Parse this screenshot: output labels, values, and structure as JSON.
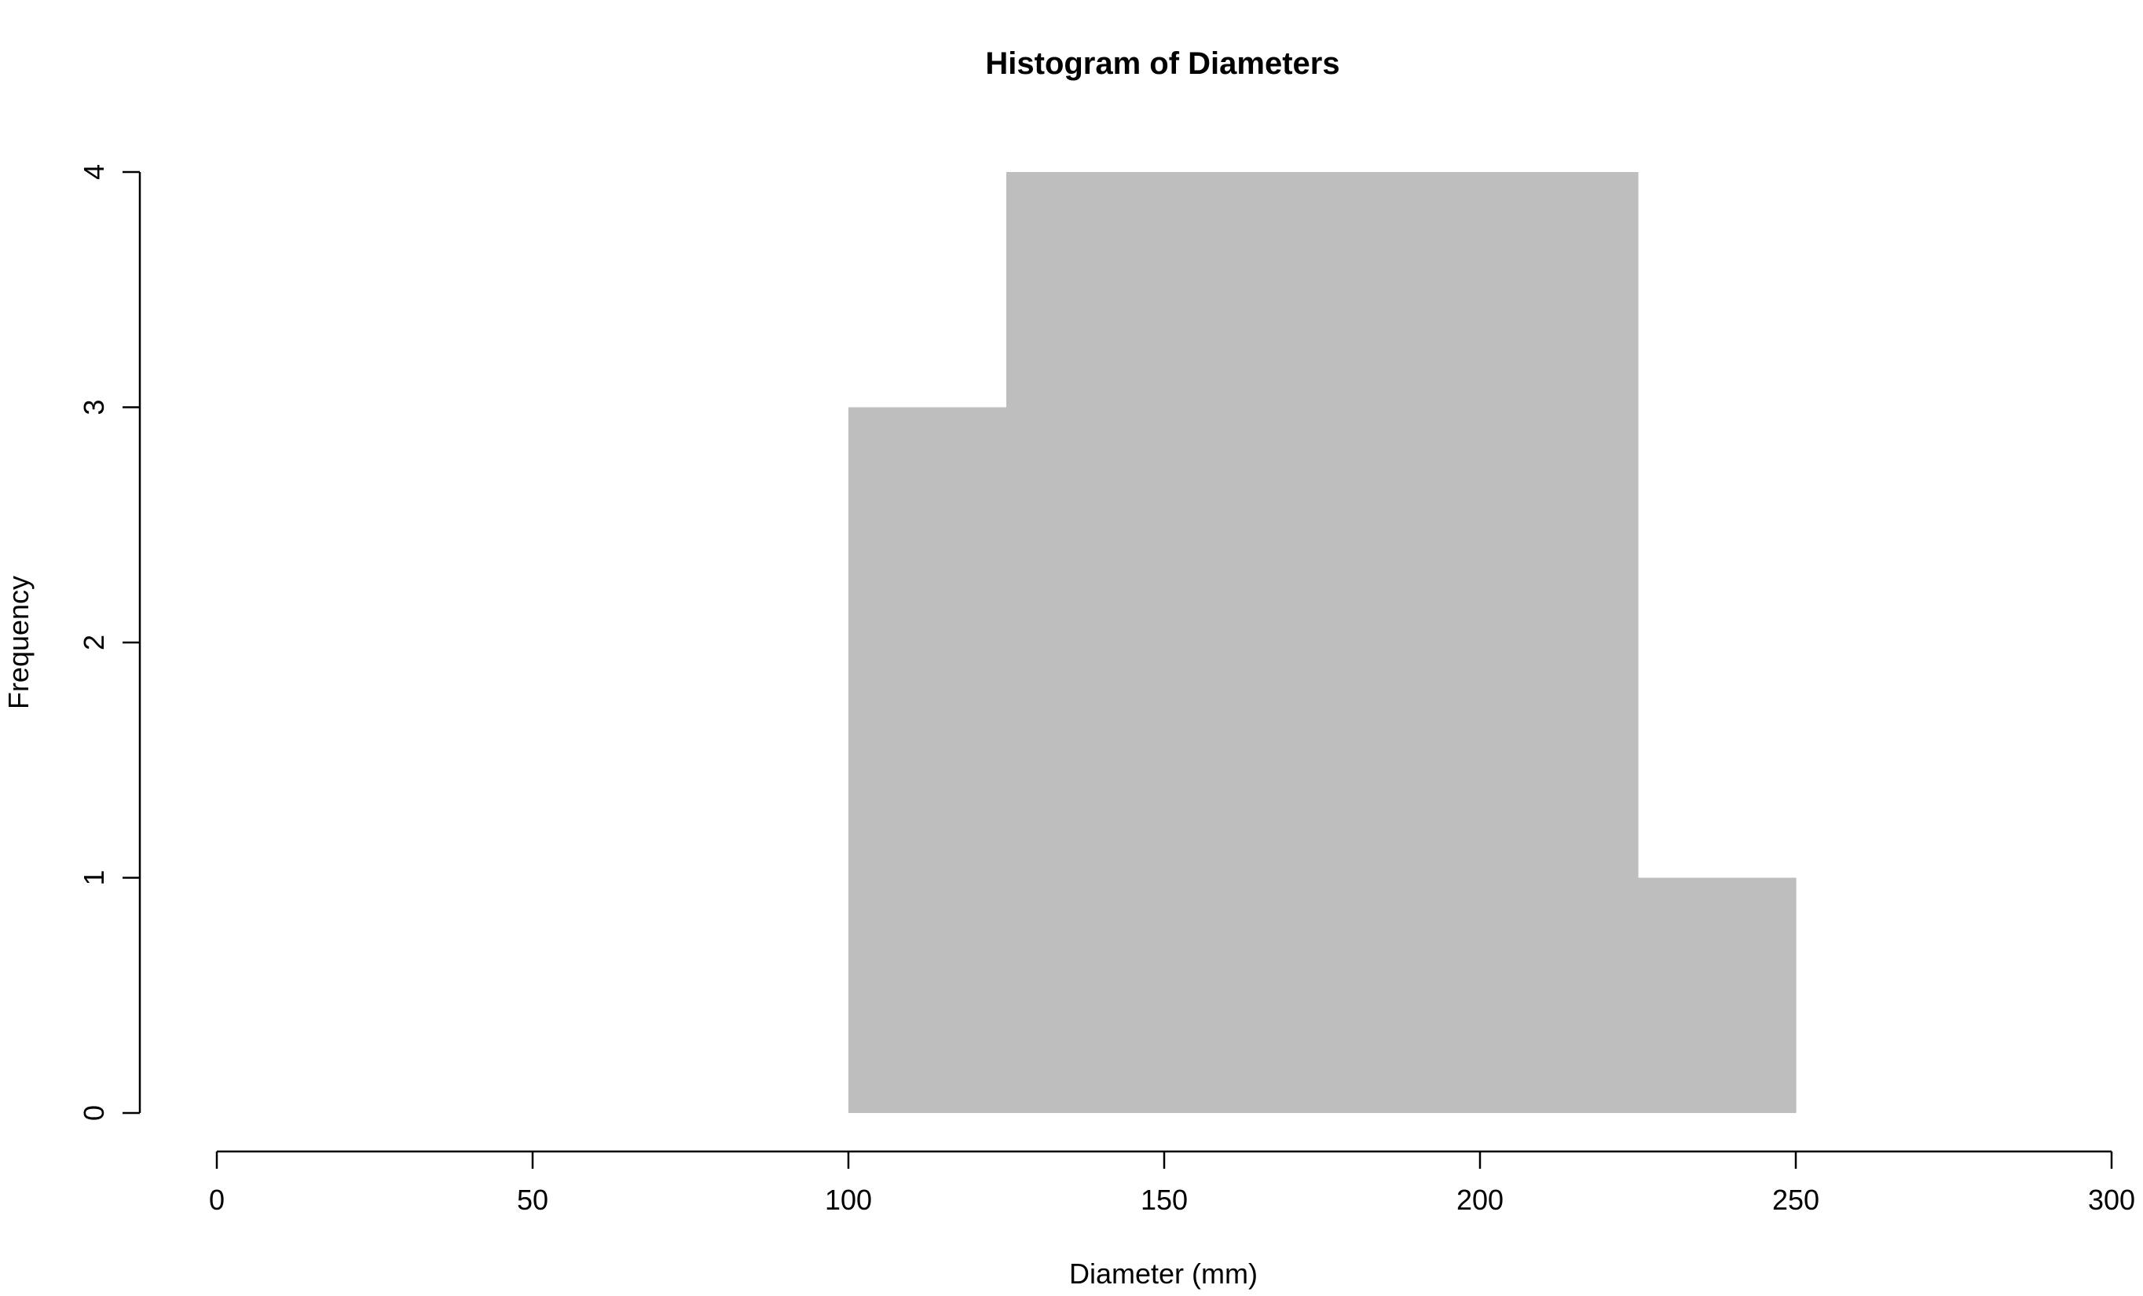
{
  "chart_data": {
    "type": "bar",
    "subtype": "histogram",
    "title": "Histogram of Diameters",
    "xlabel": "Diameter (mm)",
    "ylabel": "Frequency",
    "xlim": [
      0,
      300
    ],
    "ylim": [
      0,
      4
    ],
    "x_ticks": [
      0,
      50,
      100,
      150,
      200,
      250,
      300
    ],
    "y_ticks": [
      0,
      1,
      2,
      3,
      4
    ],
    "bins": [
      {
        "start": 100,
        "end": 125,
        "count": 3
      },
      {
        "start": 125,
        "end": 150,
        "count": 4
      },
      {
        "start": 150,
        "end": 175,
        "count": 4
      },
      {
        "start": 175,
        "end": 200,
        "count": 4
      },
      {
        "start": 200,
        "end": 225,
        "count": 4
      },
      {
        "start": 225,
        "end": 250,
        "count": 1
      }
    ],
    "bar_color": "#bebebe",
    "grid": false,
    "legend": "none"
  }
}
